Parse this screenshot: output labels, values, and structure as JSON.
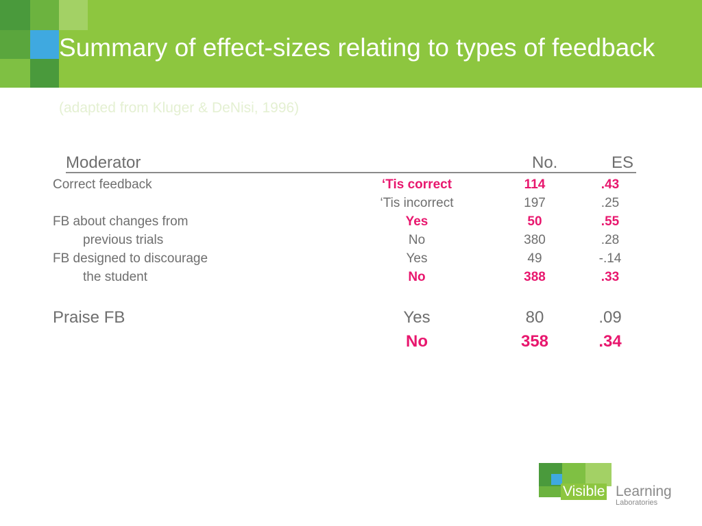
{
  "header": {
    "title": "Summary of effect-sizes relating to types of feedback",
    "subtitle": "(adapted from Kluger & DeNisi, 1996)"
  },
  "table": {
    "headers": {
      "moderator": "Moderator",
      "no": "No.",
      "es": "ES"
    },
    "rows": [
      {
        "moderator": "Correct feedback",
        "level": "‘Tis correct",
        "no": "114",
        "es": ".43",
        "highlight": true
      },
      {
        "moderator": "",
        "level": "‘Tis incorrect",
        "no": "197",
        "es": ".25",
        "highlight": false
      },
      {
        "moderator": "FB about changes from",
        "level": "Yes",
        "no": "50",
        "es": ".55",
        "highlight": true
      },
      {
        "moderator": "previous trials",
        "level": "No",
        "no": "380",
        "es": ".28",
        "highlight": false
      },
      {
        "moderator": "FB designed to discourage",
        "level": "Yes",
        "no": "49",
        "es": "-.14",
        "highlight": false
      },
      {
        "moderator": "the student",
        "level": "No",
        "no": "388",
        "es": ".33",
        "highlight": true
      },
      {
        "moderator": "Praise FB",
        "level": "Yes",
        "no": "80",
        "es": ".09",
        "highlight": false
      },
      {
        "moderator": "",
        "level": "No",
        "no": "358",
        "es": ".34",
        "highlight": true
      }
    ]
  },
  "logo": {
    "word1": "Visible",
    "word2": "Learning",
    "word3": "Laboratories"
  },
  "colors": {
    "banner": "#8dc63f",
    "highlight": "#e8176e",
    "text": "#6e6e6e"
  }
}
